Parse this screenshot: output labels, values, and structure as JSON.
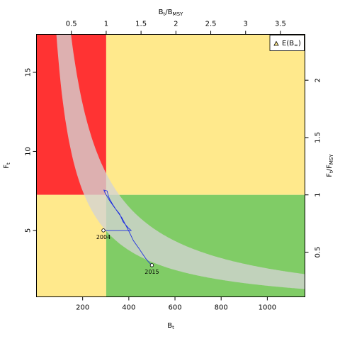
{
  "chart_data": {
    "type": "kobe-plot",
    "xlabel": {
      "main": "B",
      "sub": "t"
    },
    "ylabel": {
      "main": "F",
      "sub": "t"
    },
    "top_label": {
      "a": "B",
      "a_sub": "t",
      "b": "B",
      "b_sub": "MSY"
    },
    "right_label": {
      "a": "F",
      "a_sub": "t",
      "b": "F",
      "b_sub": "MSY"
    },
    "xlim": [
      0,
      1163
    ],
    "ylim": [
      0.8,
      17.4
    ],
    "bmsy": 302,
    "fmsy": 7.25,
    "x_ticks": [
      200,
      400,
      600,
      800,
      1000
    ],
    "y_ticks": [
      5,
      10,
      15
    ],
    "top_ticks": [
      "0.5",
      "1",
      "1.5",
      "2",
      "2.5",
      "3",
      "3.5"
    ],
    "right_ticks": [
      "0.5",
      "1",
      "1.5",
      "2"
    ],
    "zone_colors": {
      "red": "#FF3333",
      "yellow": "#FFE98C",
      "green": "#80CC66"
    },
    "equilibrium_band": {
      "color": "#D3D3D3",
      "k_lower": 1500,
      "k_upper": 2600
    },
    "trajectory": {
      "color": "#1F2FE0",
      "points": [
        [
          290,
          5.0
        ],
        [
          410,
          5.0
        ],
        [
          398,
          5.15
        ],
        [
          375,
          5.55
        ],
        [
          360,
          6.05
        ],
        [
          338,
          6.45
        ],
        [
          316,
          6.9
        ],
        [
          298,
          7.35
        ],
        [
          292,
          7.55
        ],
        [
          306,
          7.5
        ],
        [
          312,
          7.15
        ],
        [
          318,
          6.95
        ],
        [
          332,
          6.6
        ],
        [
          350,
          6.2
        ],
        [
          370,
          5.8
        ],
        [
          386,
          5.35
        ],
        [
          402,
          4.9
        ],
        [
          420,
          4.35
        ],
        [
          442,
          3.9
        ],
        [
          458,
          3.55
        ],
        [
          472,
          3.25
        ],
        [
          486,
          3.0
        ],
        [
          500,
          2.8
        ]
      ]
    },
    "points": [
      {
        "label": "2004",
        "x": 290,
        "y": 5.0
      },
      {
        "label": "2015",
        "x": 500,
        "y": 2.8
      }
    ],
    "legend": {
      "label": "E(B",
      "sub": "∞",
      "close": ")",
      "position": "top-right"
    }
  }
}
